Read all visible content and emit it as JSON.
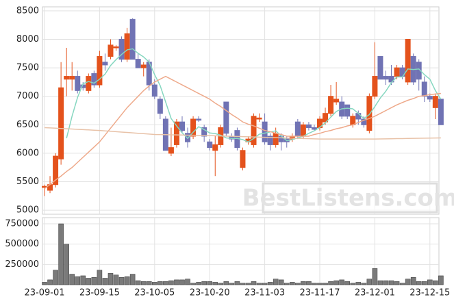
{
  "chart_data": [
    {
      "type": "candlestick",
      "watermark": "BestListens.com",
      "categories": [
        "23-09-01",
        null,
        null,
        null,
        null,
        null,
        null,
        null,
        null,
        null,
        "23-09-15",
        null,
        null,
        null,
        null,
        null,
        null,
        null,
        null,
        null,
        "23-10-05",
        null,
        null,
        null,
        null,
        null,
        null,
        null,
        null,
        null,
        "23-10-20",
        null,
        null,
        null,
        null,
        null,
        null,
        null,
        null,
        null,
        "23-11-03",
        null,
        null,
        null,
        null,
        null,
        null,
        null,
        null,
        null,
        "23-11-17",
        null,
        null,
        null,
        null,
        null,
        null,
        null,
        null,
        null,
        "23-12-01",
        null,
        null,
        null,
        null,
        null,
        null,
        null,
        null,
        null,
        "23-12-15",
        null,
        null
      ],
      "open": [
        5400,
        5350,
        5450,
        5900,
        7300,
        7300,
        7350,
        7200,
        7100,
        7400,
        7200,
        7600,
        7700,
        7850,
        8000,
        7650,
        8350,
        7650,
        7500,
        7600,
        7200,
        6950,
        6600,
        6000,
        6150,
        6550,
        6350,
        6300,
        6600,
        6450,
        6200,
        6050,
        6150,
        6900,
        6300,
        6400,
        5750,
        6200,
        6150,
        6600,
        6550,
        6300,
        6150,
        6300,
        6250,
        6250,
        6550,
        6300,
        6500,
        6450,
        6450,
        6550,
        6700,
        6900,
        6900,
        6850,
        6500,
        6700,
        6600,
        6400,
        7000,
        7700,
        7350,
        7350,
        7350,
        7500,
        7250,
        7700,
        7600,
        7250,
        7000,
        6800,
        6950
      ],
      "high": [
        5450,
        5600,
        6000,
        7600,
        7850,
        7600,
        7450,
        7250,
        7400,
        7450,
        7800,
        7750,
        8000,
        7900,
        8050,
        8200,
        8370,
        7750,
        7600,
        7650,
        7300,
        7000,
        6650,
        6450,
        6600,
        6650,
        6450,
        6650,
        6650,
        6500,
        6250,
        6300,
        6500,
        6900,
        6350,
        6450,
        6100,
        6300,
        6700,
        6700,
        6700,
        6350,
        6450,
        6350,
        6300,
        6350,
        6600,
        6550,
        6550,
        6500,
        6650,
        6800,
        7200,
        7250,
        7000,
        6850,
        6700,
        6750,
        6650,
        7050,
        7950,
        7700,
        7450,
        7550,
        7550,
        7550,
        8000,
        7750,
        7650,
        7350,
        7050,
        7050,
        6950
      ],
      "low": [
        5250,
        5300,
        5400,
        5800,
        7000,
        7100,
        7050,
        7100,
        7050,
        7150,
        7150,
        7450,
        7650,
        7800,
        7600,
        7600,
        7650,
        7500,
        7350,
        7100,
        6950,
        6600,
        6050,
        5950,
        6100,
        6350,
        6100,
        6250,
        6550,
        6200,
        6050,
        5600,
        6100,
        6300,
        6200,
        6050,
        5700,
        6150,
        6100,
        6550,
        6150,
        6050,
        6100,
        6050,
        6100,
        6200,
        6250,
        6250,
        6400,
        6400,
        6400,
        6500,
        6650,
        6850,
        6600,
        6600,
        6450,
        6500,
        6450,
        6350,
        6950,
        7300,
        7200,
        7200,
        7300,
        7300,
        7200,
        7200,
        7100,
        6900,
        6900,
        6600,
        6500
      ],
      "close": [
        5420,
        5450,
        5950,
        7150,
        7350,
        7350,
        7100,
        7150,
        7350,
        7200,
        7700,
        7550,
        7900,
        7870,
        7650,
        8100,
        7650,
        7500,
        7550,
        7200,
        7000,
        6700,
        6050,
        6100,
        6550,
        6400,
        6200,
        6600,
        6580,
        6300,
        6100,
        6150,
        6450,
        6350,
        6250,
        6100,
        6050,
        6250,
        6650,
        6620,
        6200,
        6150,
        6350,
        6200,
        6200,
        6300,
        6300,
        6500,
        6450,
        6420,
        6600,
        6700,
        7000,
        6950,
        6650,
        6650,
        6650,
        6600,
        6500,
        7000,
        7350,
        7300,
        7300,
        7250,
        7500,
        7350,
        8000,
        7250,
        7300,
        7000,
        6950,
        7000,
        6500
      ],
      "up_color": "#e4521c",
      "down_color": "#7073b4",
      "series": [
        {
          "color": "#86d7c0",
          "values": [
            null,
            null,
            null,
            null,
            6264,
            6650,
            6980,
            7220,
            7260,
            7230,
            7300,
            7390,
            7540,
            7644,
            7734,
            7814,
            7834,
            7754,
            7690,
            7600,
            7380,
            7190,
            6900,
            6610,
            6480,
            6360,
            6260,
            6370,
            6466,
            6416,
            6356,
            6346,
            6316,
            6270,
            6260,
            6260,
            6240,
            6200,
            6260,
            6334,
            6354,
            6374,
            6394,
            6304,
            6220,
            6240,
            6270,
            6300,
            6350,
            6394,
            6454,
            6534,
            6634,
            6734,
            6780,
            6790,
            6780,
            6700,
            6610,
            6680,
            6820,
            6970,
            7090,
            7240,
            7340,
            7340,
            7480,
            7470,
            7480,
            7380,
            7300,
            7100,
            6950
          ]
        },
        {
          "color": "#eea98a",
          "values": [
            5380,
            5450,
            5530,
            5600,
            5680,
            5750,
            5840,
            5930,
            6020,
            6110,
            6200,
            6320,
            6440,
            6560,
            6680,
            6800,
            6900,
            7000,
            7100,
            7180,
            7250,
            7300,
            7350,
            7300,
            7250,
            7200,
            7150,
            7100,
            7050,
            7000,
            6950,
            6880,
            6820,
            6750,
            6680,
            6620,
            6550,
            6510,
            6480,
            6440,
            6400,
            6380,
            6350,
            6330,
            6300,
            6300,
            6300,
            6300,
            6300,
            6330,
            6350,
            6380,
            6400,
            6430,
            6450,
            6480,
            6500,
            6540,
            6580,
            6610,
            6650,
            6700,
            6750,
            6800,
            6850,
            6890,
            6930,
            6960,
            7000,
            7010,
            7030,
            7040,
            7050
          ]
        },
        {
          "color": "#e8c2a8",
          "values": [
            6450,
            6445,
            6440,
            6435,
            6430,
            6425,
            6420,
            6415,
            6410,
            6405,
            6400,
            6393,
            6386,
            6379,
            6372,
            6365,
            6358,
            6351,
            6344,
            6337,
            6330,
            6328,
            6326,
            6324,
            6322,
            6320,
            6318,
            6316,
            6314,
            6312,
            6310,
            6307,
            6304,
            6301,
            6298,
            6295,
            6292,
            6289,
            6286,
            6283,
            6280,
            6277,
            6274,
            6271,
            6268,
            6265,
            6262,
            6259,
            6256,
            6253,
            6250,
            6250,
            6250,
            6250,
            6250,
            6250,
            6250,
            6250,
            6250,
            6250,
            6250,
            6252,
            6253,
            6255,
            6257,
            6258,
            6260,
            6262,
            6263,
            6265,
            6267,
            6268,
            6270
          ]
        }
      ],
      "ylim": [
        4930,
        8570
      ],
      "yticks": [
        5000,
        5500,
        6000,
        6500,
        7000,
        7500,
        8000,
        8500
      ],
      "grid": true
    },
    {
      "type": "bar",
      "color": "#7a7a7a",
      "values": [
        30000,
        60000,
        180000,
        750000,
        500000,
        130000,
        100000,
        110000,
        80000,
        90000,
        180000,
        80000,
        140000,
        120000,
        90000,
        100000,
        130000,
        50000,
        40000,
        40000,
        30000,
        40000,
        40000,
        50000,
        60000,
        60000,
        70000,
        20000,
        30000,
        40000,
        40000,
        30000,
        20000,
        40000,
        20000,
        40000,
        20000,
        20000,
        40000,
        20000,
        20000,
        30000,
        70000,
        60000,
        20000,
        30000,
        20000,
        40000,
        40000,
        20000,
        20000,
        20000,
        40000,
        50000,
        60000,
        40000,
        20000,
        30000,
        20000,
        70000,
        200000,
        50000,
        50000,
        50000,
        40000,
        20000,
        70000,
        90000,
        40000,
        40000,
        60000,
        50000,
        110000
      ],
      "ylim": [
        0,
        826000
      ],
      "yticks": [
        250000,
        500000,
        750000
      ],
      "grid": true
    }
  ]
}
